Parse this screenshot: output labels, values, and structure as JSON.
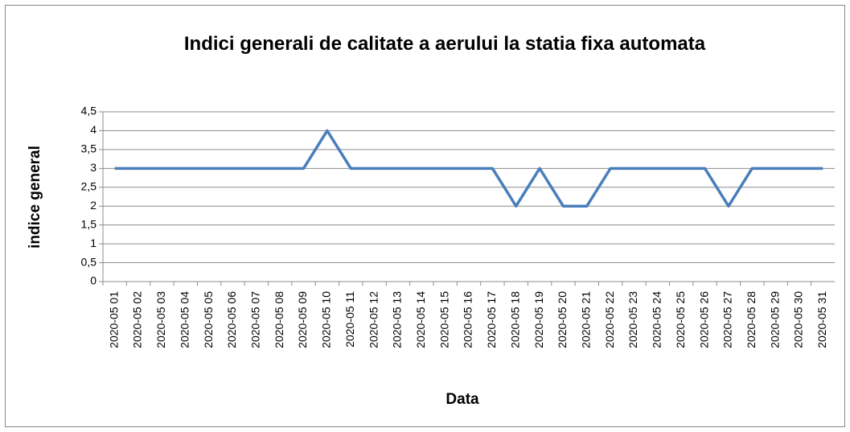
{
  "chart_data": {
    "type": "line",
    "title": "Indici generali de calitate a aerului la statia fixa automata",
    "x_label": "Data",
    "y_label": "indice general",
    "categories": [
      "2020-05 01",
      "2020-05 02",
      "2020-05 03",
      "2020-05 04",
      "2020-05 05",
      "2020-05 06",
      "2020-05 07",
      "2020-05 08",
      "2020-05 09",
      "2020-05 10",
      "2020-05 11",
      "2020-05 12",
      "2020-05 13",
      "2020-05 14",
      "2020-05 15",
      "2020-05 16",
      "2020-05 17",
      "2020-05 18",
      "2020-05 19",
      "2020-05 20",
      "2020-05 21",
      "2020-05 22",
      "2020-05 23",
      "2020-05 24",
      "2020-05 25",
      "2020-05 26",
      "2020-05 27",
      "2020-05 28",
      "2020-05 29",
      "2020-05 30",
      "2020-05 31"
    ],
    "values": [
      3,
      3,
      3,
      3,
      3,
      3,
      3,
      3,
      3,
      4,
      3,
      3,
      3,
      3,
      3,
      3,
      3,
      2,
      3,
      2,
      2,
      3,
      3,
      3,
      3,
      3,
      2,
      3,
      3,
      3,
      3
    ],
    "color": "#4a7ebb",
    "ylim": [
      0,
      4.5
    ],
    "yticks": [
      0,
      {
        "value": 0.5,
        "label": "0,5"
      },
      1,
      {
        "value": 1.5,
        "label": "1,5"
      },
      2,
      {
        "value": 2.5,
        "label": "2,5"
      },
      3,
      {
        "value": 3.5,
        "label": "3,5"
      },
      4,
      {
        "value": 4.5,
        "label": "4,5"
      }
    ],
    "grid": true
  }
}
